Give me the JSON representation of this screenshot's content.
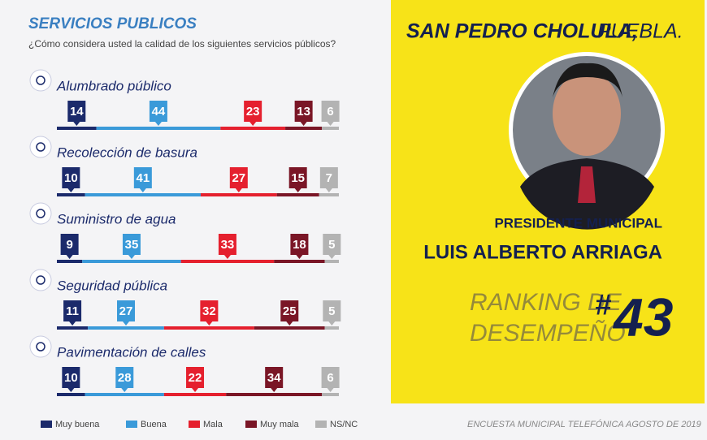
{
  "chart_data": {
    "type": "stacked-bar",
    "title": "SERVICIOS PUBLICOS",
    "subtitle": "¿Cómo considera usted la calidad de los siguientes servicios públicos?",
    "categories": [
      "Alumbrado público",
      "Recolección de basura",
      "Suministro de agua",
      "Seguridad pública",
      "Pavimentación de calles"
    ],
    "series": [
      {
        "name": "Muy buena",
        "color": "#1b2a6b",
        "values": [
          14,
          10,
          9,
          11,
          10
        ]
      },
      {
        "name": "Buena",
        "color": "#3a9ad9",
        "values": [
          44,
          41,
          35,
          27,
          28
        ]
      },
      {
        "name": "Mala",
        "color": "#e5202e",
        "values": [
          23,
          27,
          33,
          32,
          22
        ]
      },
      {
        "name": "Muy mala",
        "color": "#7a1626",
        "values": [
          13,
          15,
          18,
          25,
          34
        ]
      },
      {
        "name": "NS/NC",
        "color": "#b3b3b3",
        "values": [
          6,
          7,
          5,
          5,
          6
        ]
      }
    ],
    "xlim": [
      0,
      100
    ]
  },
  "header": {
    "city": "SAN PEDRO CHOLULA,",
    "state": "PUEBLA."
  },
  "profile": {
    "role": "PRESIDENTE MUNICIPAL",
    "name": "LUIS ALBERTO ARRIAGA"
  },
  "ranking": {
    "label_1": "RANKING DE",
    "label_2": "DESEMPEÑO",
    "prefix": "#",
    "position": "43"
  },
  "footer": {
    "source": "ENCUESTA MUNICIPAL TELEFÓNICA AGOSTO DE 2019"
  }
}
